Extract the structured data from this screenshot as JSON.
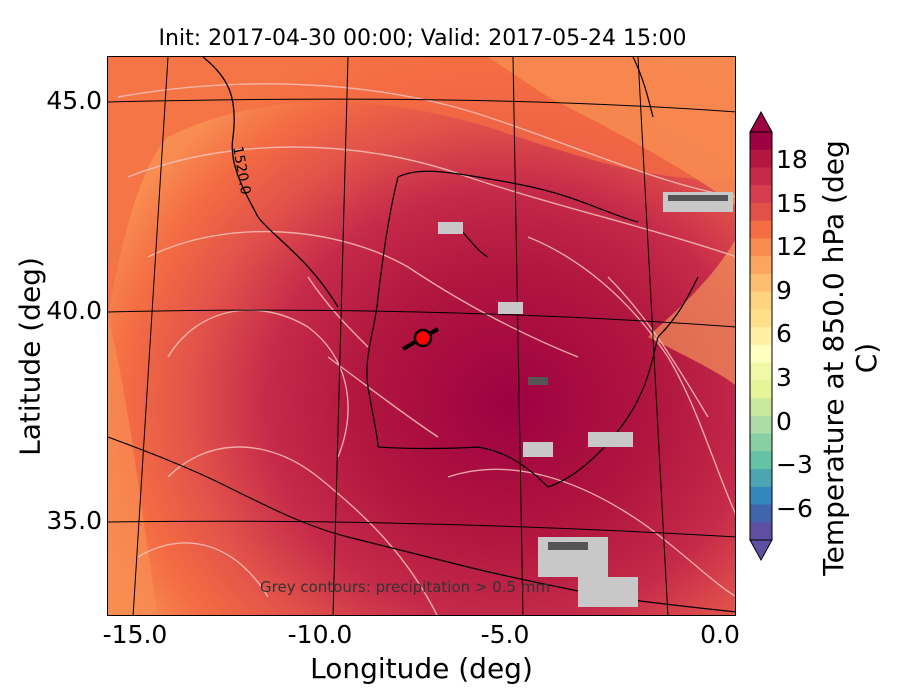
{
  "title": "Init: 2017-04-30 00:00; Valid: 2017-05-24 15:00",
  "axes": {
    "xlabel": "Longitude (deg)",
    "ylabel": "Latitude (deg)",
    "xticks": [
      "-15.0",
      "-10.0",
      "-5.0",
      "0.0"
    ],
    "yticks": [
      "45.0",
      "40.0",
      "35.0"
    ]
  },
  "colorbar": {
    "label": "Temperature at 850.0 hPa (deg C)",
    "ticks": [
      "18",
      "15",
      "12",
      "9",
      "6",
      "3",
      "0",
      "−3",
      "−6"
    ],
    "colors": [
      "#9e0142",
      "#b2173f",
      "#c52a4a",
      "#d53e4f",
      "#e1514a",
      "#f46d43",
      "#f88d52",
      "#fca55d",
      "#fdbf6f",
      "#fed481",
      "#fee08b",
      "#fff0a6",
      "#ffffbf",
      "#f1f9a9",
      "#e6f598",
      "#cbe99d",
      "#abdda4",
      "#88cfa4",
      "#66c2a5",
      "#4ba6b1",
      "#3288bd",
      "#4065ad",
      "#5e4fa2"
    ],
    "range": [
      -8,
      21
    ]
  },
  "contour_label": "1520.0",
  "precip_note": "Grey contours: precipitation > 0.5 mm",
  "marker_color": "#ff0000"
}
